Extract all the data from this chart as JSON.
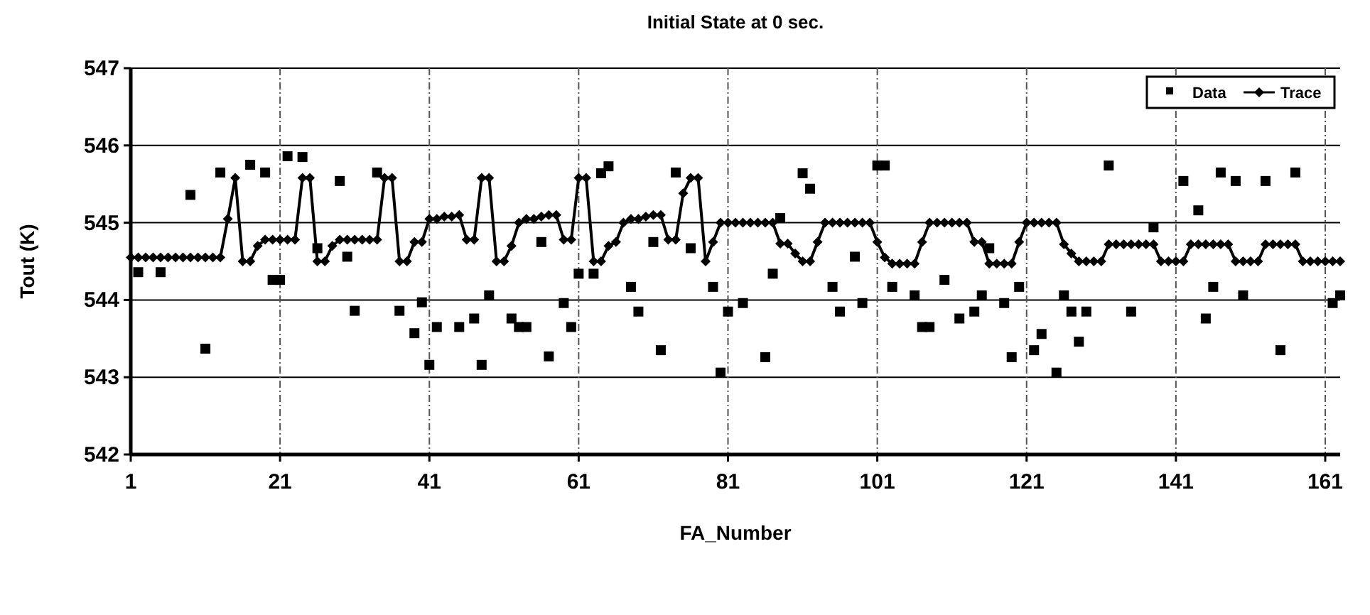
{
  "chart_data": {
    "type": "line",
    "title": "Initial State at 0 sec.",
    "xlabel": "FA_Number",
    "ylabel": "Tout (K)",
    "xlim": [
      1,
      163
    ],
    "xticks": [
      1,
      21,
      41,
      61,
      81,
      101,
      121,
      141,
      161
    ],
    "ylim": [
      542,
      547
    ],
    "yticks": [
      542,
      543,
      544,
      545,
      546,
      547
    ],
    "grid": true,
    "legend": "top right",
    "series": [
      {
        "name": "Data",
        "type": "scatter",
        "marker": "square",
        "color": "#000000",
        "x": [
          2,
          5,
          9,
          11,
          13,
          17,
          19,
          20,
          21,
          22,
          24,
          26,
          29,
          30,
          31,
          34,
          37,
          39,
          40,
          41,
          42,
          45,
          47,
          48,
          49,
          52,
          53,
          54,
          56,
          57,
          59,
          60,
          61,
          63,
          64,
          65,
          68,
          69,
          71,
          72,
          74,
          76,
          79,
          80,
          81,
          83,
          86,
          87,
          88,
          91,
          92,
          95,
          96,
          98,
          99,
          101,
          102,
          103,
          106,
          107,
          108,
          110,
          112,
          114,
          115,
          116,
          118,
          119,
          120,
          122,
          123,
          125,
          126,
          127,
          128,
          129,
          132,
          135,
          138,
          142,
          144,
          145,
          146,
          147,
          149,
          150,
          153,
          155,
          157,
          162,
          163
        ],
        "values": [
          544.36,
          544.36,
          545.36,
          543.37,
          545.65,
          545.75,
          545.65,
          544.26,
          544.26,
          545.86,
          545.85,
          544.67,
          545.54,
          544.56,
          543.86,
          545.65,
          543.86,
          543.57,
          543.97,
          543.16,
          543.65,
          543.65,
          543.76,
          543.16,
          544.06,
          543.76,
          543.65,
          543.65,
          544.75,
          543.27,
          543.96,
          543.65,
          544.34,
          544.34,
          545.64,
          545.73,
          544.17,
          543.85,
          544.75,
          543.35,
          545.65,
          544.67,
          544.17,
          543.06,
          543.85,
          543.96,
          543.26,
          544.34,
          545.06,
          545.64,
          545.44,
          544.17,
          543.85,
          544.56,
          543.96,
          545.74,
          545.74,
          544.17,
          544.06,
          543.65,
          543.65,
          544.26,
          543.76,
          543.85,
          544.06,
          544.67,
          543.96,
          543.26,
          544.17,
          543.35,
          543.56,
          543.06,
          544.06,
          543.85,
          543.46,
          543.85,
          545.74,
          543.85,
          544.94,
          545.54,
          545.16,
          543.76,
          544.17,
          545.65,
          545.54,
          544.06,
          545.54,
          543.35,
          545.65,
          543.96,
          544.06
        ]
      },
      {
        "name": "Trace",
        "marker": "diamond",
        "line_style": "solid",
        "color": "#000000",
        "x": [
          1,
          2,
          3,
          4,
          5,
          6,
          7,
          8,
          9,
          10,
          11,
          12,
          13,
          14,
          15,
          16,
          17,
          18,
          19,
          20,
          21,
          22,
          23,
          24,
          25,
          26,
          27,
          28,
          29,
          30,
          31,
          32,
          33,
          34,
          35,
          36,
          37,
          38,
          39,
          40,
          41,
          42,
          43,
          44,
          45,
          46,
          47,
          48,
          49,
          50,
          51,
          52,
          53,
          54,
          55,
          56,
          57,
          58,
          59,
          60,
          61,
          62,
          63,
          64,
          65,
          66,
          67,
          68,
          69,
          70,
          71,
          72,
          73,
          74,
          75,
          76,
          77,
          78,
          79,
          80,
          81,
          82,
          83,
          84,
          85,
          86,
          87,
          88,
          89,
          90,
          91,
          92,
          93,
          94,
          95,
          96,
          97,
          98,
          99,
          100,
          101,
          102,
          103,
          104,
          105,
          106,
          107,
          108,
          109,
          110,
          111,
          112,
          113,
          114,
          115,
          116,
          117,
          118,
          119,
          120,
          121,
          122,
          123,
          124,
          125,
          126,
          127,
          128,
          129,
          130,
          131,
          132,
          133,
          134,
          135,
          136,
          137,
          138,
          139,
          140,
          141,
          142,
          143,
          144,
          145,
          146,
          147,
          148,
          149,
          150,
          151,
          152,
          153,
          154,
          155,
          156,
          157,
          158,
          159,
          160,
          161,
          162,
          163
        ],
        "values": [
          544.55,
          544.55,
          544.55,
          544.55,
          544.55,
          544.55,
          544.55,
          544.55,
          544.55,
          544.55,
          544.55,
          544.55,
          544.55,
          545.05,
          545.58,
          544.5,
          544.5,
          544.7,
          544.78,
          544.78,
          544.78,
          544.78,
          544.78,
          545.58,
          545.58,
          544.5,
          544.5,
          544.7,
          544.78,
          544.78,
          544.78,
          544.78,
          544.78,
          544.78,
          545.58,
          545.58,
          544.5,
          544.5,
          544.75,
          544.75,
          545.05,
          545.05,
          545.08,
          545.08,
          545.1,
          544.78,
          544.78,
          545.58,
          545.58,
          544.5,
          544.5,
          544.7,
          545.0,
          545.05,
          545.05,
          545.08,
          545.1,
          545.1,
          544.78,
          544.78,
          545.58,
          545.58,
          544.5,
          544.5,
          544.7,
          544.75,
          545.0,
          545.05,
          545.05,
          545.08,
          545.1,
          545.1,
          544.78,
          544.78,
          545.38,
          545.58,
          545.58,
          544.5,
          544.75,
          545.0,
          545.0,
          545.0,
          545.0,
          545.0,
          545.0,
          545.0,
          545.0,
          544.73,
          544.73,
          544.6,
          544.5,
          544.5,
          544.75,
          545.0,
          545.0,
          545.0,
          545.0,
          545.0,
          545.0,
          545.0,
          544.75,
          544.55,
          544.47,
          544.47,
          544.47,
          544.47,
          544.75,
          545.0,
          545.0,
          545.0,
          545.0,
          545.0,
          545.0,
          544.75,
          544.75,
          544.47,
          544.47,
          544.47,
          544.47,
          544.75,
          545.0,
          545.0,
          545.0,
          545.0,
          545.0,
          544.72,
          544.6,
          544.5,
          544.5,
          544.5,
          544.5,
          544.72,
          544.72,
          544.72,
          544.72,
          544.72,
          544.72,
          544.72,
          544.5,
          544.5,
          544.5,
          544.5,
          544.72,
          544.72,
          544.72,
          544.72,
          544.72,
          544.72,
          544.5,
          544.5,
          544.5,
          544.5,
          544.72,
          544.72,
          544.72,
          544.72,
          544.72,
          544.5,
          544.5,
          544.5,
          544.5,
          544.5,
          544.5
        ]
      }
    ]
  }
}
